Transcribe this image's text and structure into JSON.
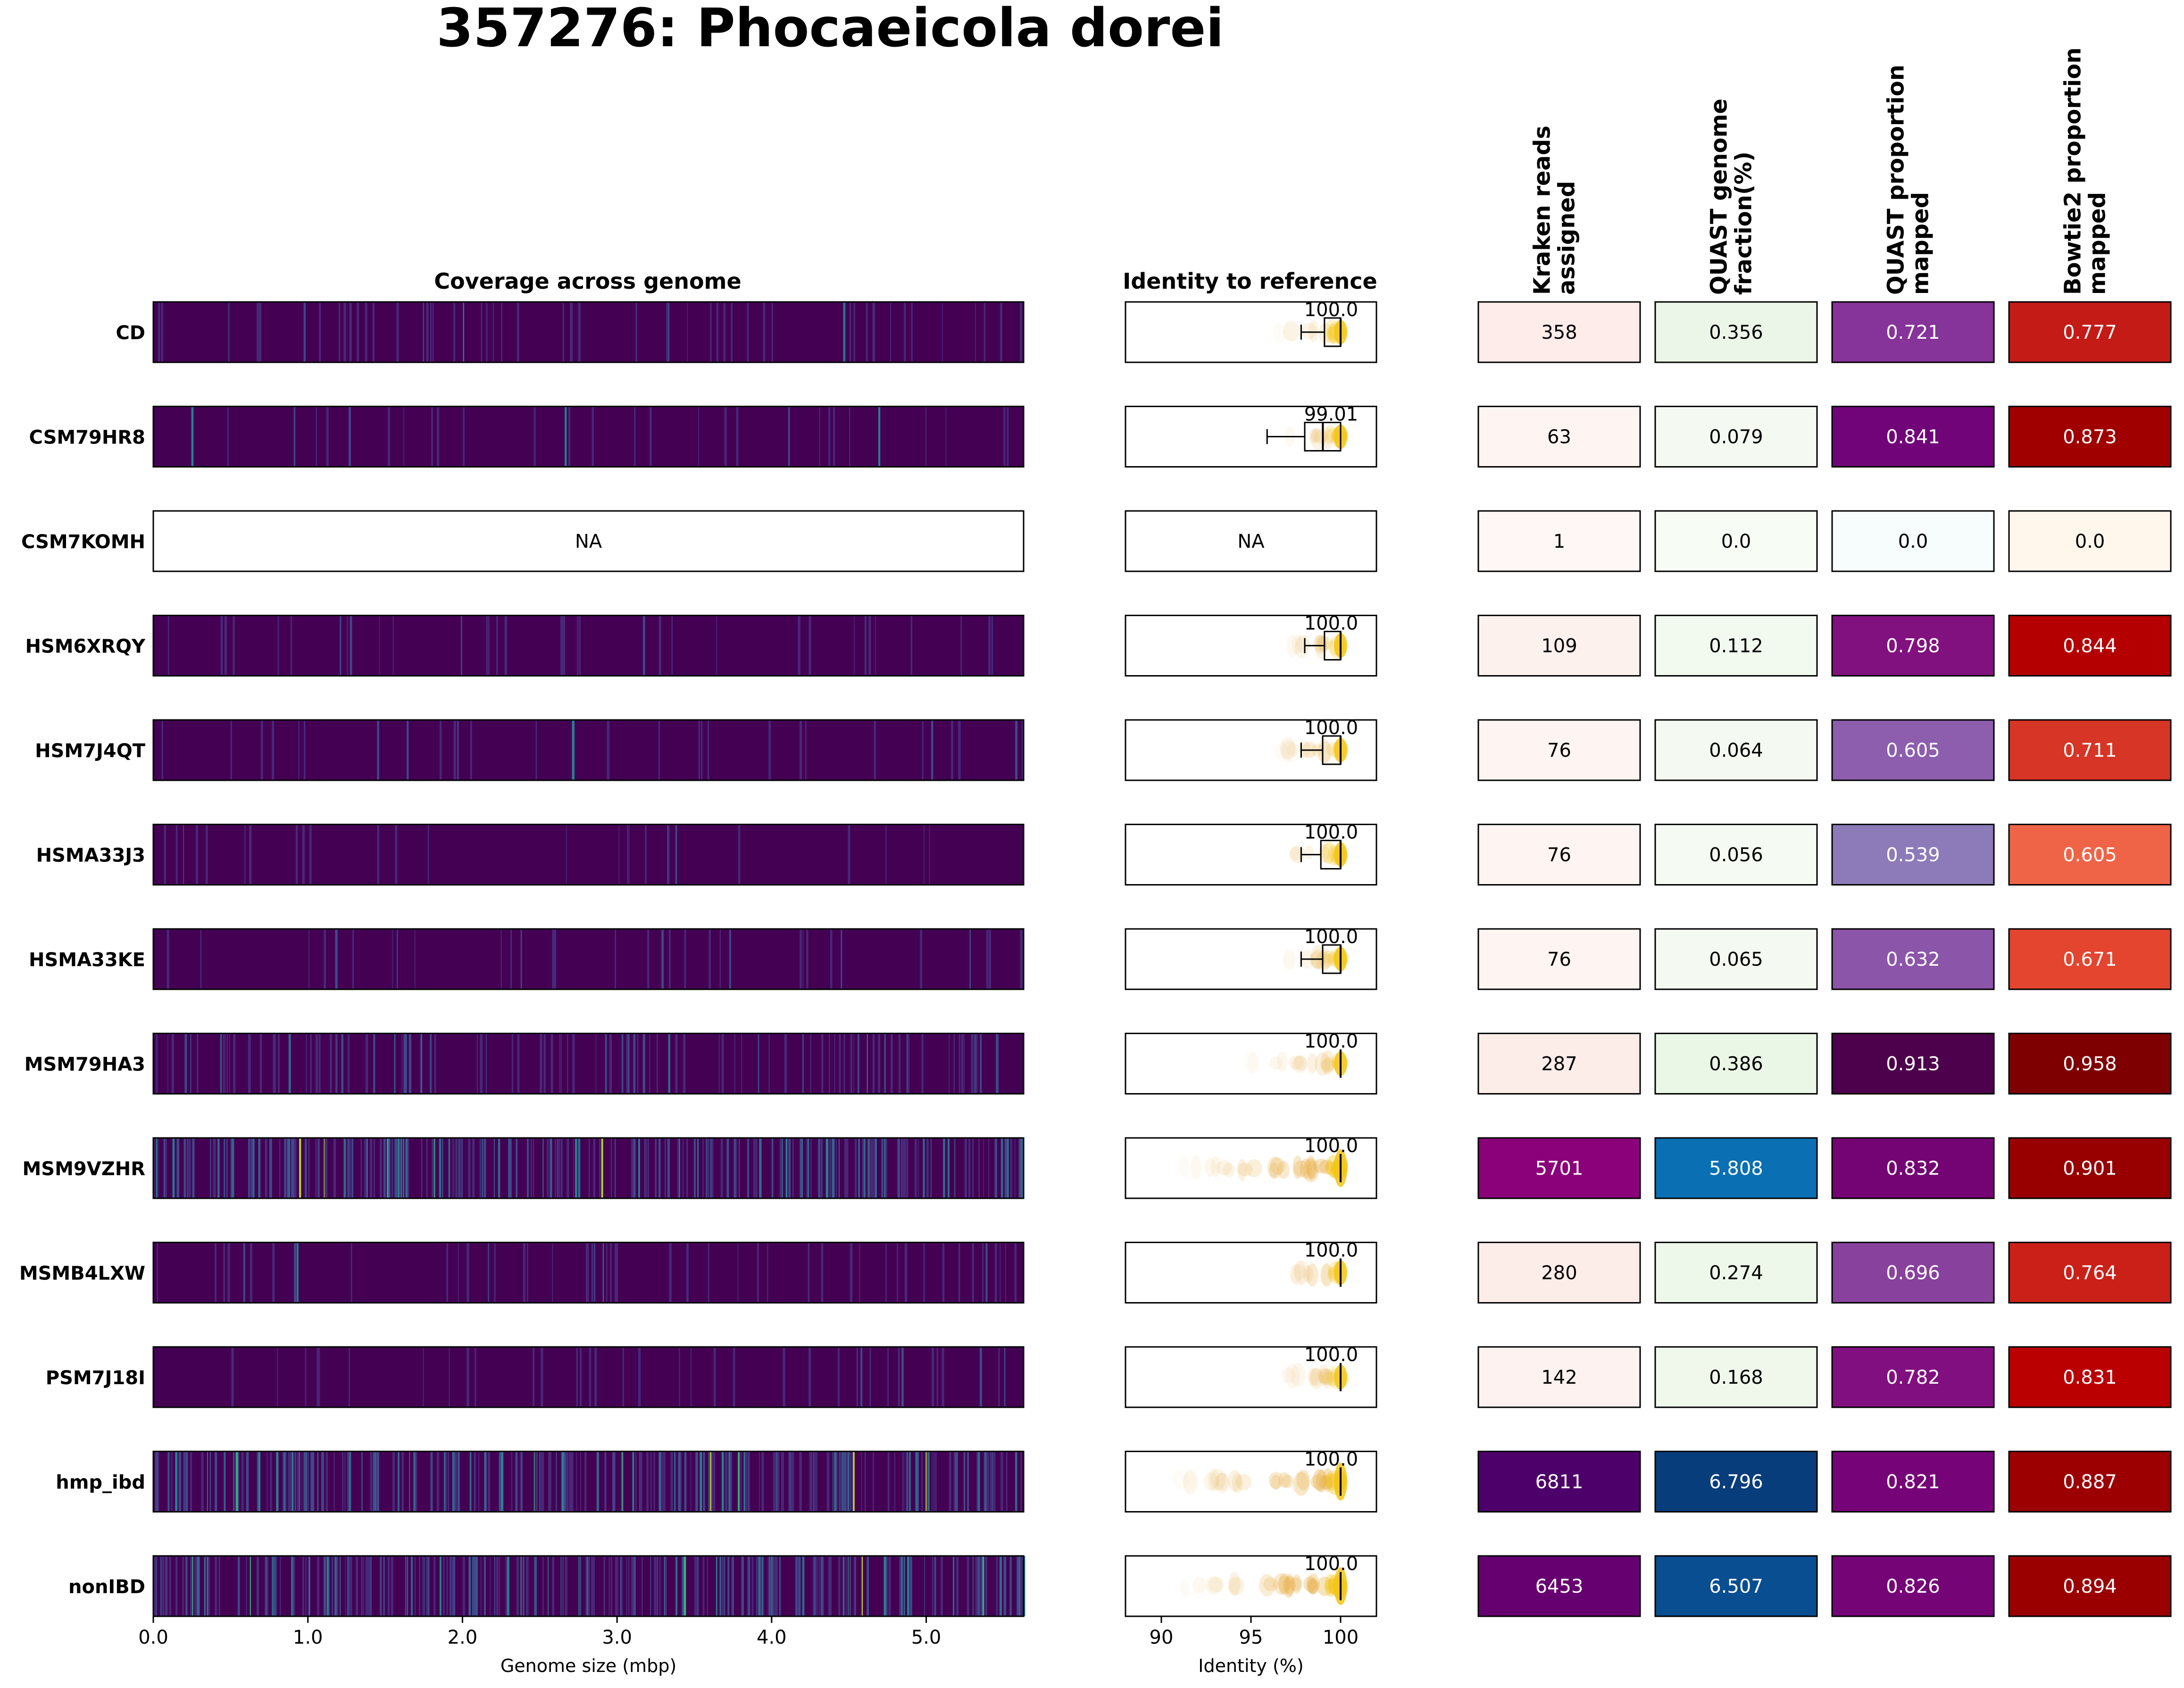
{
  "title": "357276: Phocaeicola dorei",
  "coverage_title": "Coverage across genome",
  "identity_title": "Identity to reference",
  "na_text": "NA",
  "metric_headers": [
    [
      "Kraken reads",
      "assigned"
    ],
    [
      "QUAST genome",
      "fraction(%)"
    ],
    [
      "QUAST proportion",
      "mapped"
    ],
    [
      "Bowtie2 proportion",
      "mapped"
    ]
  ],
  "chart_data": {
    "type": "heatmap",
    "title": "357276: Phocaeicola dorei",
    "samples": [
      "CD",
      "CSM79HR8",
      "CSM7KOMH",
      "HSM6XRQY",
      "HSM7J4QT",
      "HSMA33J3",
      "HSMA33KE",
      "MSM79HA3",
      "MSM9VZHR",
      "MSMB4LXW",
      "PSM7J18I",
      "hmp_ibd",
      "nonIBD"
    ],
    "coverage": {
      "xlabel": "Genome size (mbp)",
      "xlim": [
        0,
        5.63
      ],
      "xticks": [
        "0.0",
        "1.0",
        "2.0",
        "3.0",
        "4.0",
        "5.0"
      ],
      "xtick_values": [
        0,
        1,
        2,
        3,
        4,
        5
      ],
      "colormap": "viridis",
      "density": [
        0.15,
        0.05,
        0,
        0.06,
        0.04,
        0.03,
        0.05,
        0.35,
        0.9,
        0.12,
        0.07,
        0.95,
        0.95
      ]
    },
    "identity": {
      "xlabel": "Identity (%)",
      "xlim": [
        88,
        102
      ],
      "xticks": [
        "90",
        "95",
        "100"
      ],
      "xtick_values": [
        90,
        95,
        100
      ],
      "median_labels": [
        "100.0",
        "99.01",
        "NA",
        "100.0",
        "100.0",
        "100.0",
        "100.0",
        "100.0",
        "100.0",
        "100.0",
        "100.0",
        "100.0",
        "100.0"
      ],
      "boxes": [
        {
          "wmin": 97.8,
          "q1": 99.1,
          "median": 100.0,
          "q3": 100.0,
          "wmax": 100.0
        },
        {
          "wmin": 95.9,
          "q1": 98.0,
          "median": 99.01,
          "q3": 100.0,
          "wmax": 100.0
        },
        null,
        {
          "wmin": 98.0,
          "q1": 99.1,
          "median": 100.0,
          "q3": 100.0,
          "wmax": 100.0
        },
        {
          "wmin": 97.8,
          "q1": 99.0,
          "median": 100.0,
          "q3": 100.0,
          "wmax": 100.0
        },
        {
          "wmin": 97.8,
          "q1": 98.9,
          "median": 100.0,
          "q3": 100.0,
          "wmax": 100.0
        },
        {
          "wmin": 97.8,
          "q1": 99.0,
          "median": 100.0,
          "q3": 100.0,
          "wmax": 100.0
        },
        {
          "wmin": 100.0,
          "q1": 100.0,
          "median": 100.0,
          "q3": 100.0,
          "wmax": 100.0
        },
        {
          "wmin": 100.0,
          "q1": 100.0,
          "median": 100.0,
          "q3": 100.0,
          "wmax": 100.0
        },
        {
          "wmin": 100.0,
          "q1": 100.0,
          "median": 100.0,
          "q3": 100.0,
          "wmax": 100.0
        },
        {
          "wmin": 100.0,
          "q1": 100.0,
          "median": 100.0,
          "q3": 100.0,
          "wmax": 100.0
        },
        {
          "wmin": 100.0,
          "q1": 100.0,
          "median": 100.0,
          "q3": 100.0,
          "wmax": 100.0
        },
        {
          "wmin": 100.0,
          "q1": 100.0,
          "median": 100.0,
          "q3": 100.0,
          "wmax": 100.0
        }
      ]
    },
    "metrics": [
      {
        "name": "Kraken reads assigned",
        "labels": [
          "358",
          "63",
          "1",
          "109",
          "76",
          "76",
          "76",
          "287",
          "5701",
          "280",
          "142",
          "6811",
          "6453"
        ],
        "values": [
          358,
          63,
          1,
          109,
          76,
          76,
          76,
          287,
          5701,
          280,
          142,
          6811,
          6453
        ],
        "colors": [
          "#fdecea",
          "#fef5f2",
          "#fff7f5",
          "#fdf1ee",
          "#fef4f1",
          "#fef4f1",
          "#fef4f1",
          "#fdede9",
          "#8a0179",
          "#fdede9",
          "#fdf2ef",
          "#4d006a",
          "#660070"
        ]
      },
      {
        "name": "QUAST genome fraction(%)",
        "labels": [
          "0.356",
          "0.079",
          "0.0",
          "0.112",
          "0.064",
          "0.056",
          "0.065",
          "0.386",
          "5.808",
          "0.274",
          "0.168",
          "6.796",
          "6.507"
        ],
        "values": [
          0.356,
          0.079,
          0.0,
          0.112,
          0.064,
          0.056,
          0.065,
          0.386,
          5.808,
          0.274,
          0.168,
          6.796,
          6.507
        ],
        "colors": [
          "#ebf6e8",
          "#f4faf1",
          "#f7fcf5",
          "#f2f9ef",
          "#f4faf1",
          "#f5fbf2",
          "#f4faf1",
          "#eaf6e6",
          "#0a6fb3",
          "#eef8ea",
          "#f0f8ec",
          "#083d7b",
          "#084e90"
        ]
      },
      {
        "name": "QUAST proportion mapped",
        "labels": [
          "0.721",
          "0.841",
          "0.0",
          "0.798",
          "0.605",
          "0.539",
          "0.632",
          "0.913",
          "0.832",
          "0.696",
          "0.782",
          "0.821",
          "0.826"
        ],
        "values": [
          0.721,
          0.841,
          0.0,
          0.798,
          0.605,
          0.539,
          0.632,
          0.913,
          0.832,
          0.696,
          0.782,
          0.821,
          0.826
        ],
        "colors": [
          "#86339a",
          "#710479",
          "#f7fcfd",
          "#81117f",
          "#8c5ead",
          "#8c7bb8",
          "#8b55a9",
          "#4d004b",
          "#740474",
          "#88419d",
          "#820f80",
          "#760478",
          "#750477"
        ]
      },
      {
        "name": "Bowtie2 proportion mapped",
        "labels": [
          "0.777",
          "0.873",
          "0.0",
          "0.844",
          "0.711",
          "0.605",
          "0.671",
          "0.958",
          "0.901",
          "0.764",
          "0.831",
          "0.887",
          "0.894"
        ],
        "values": [
          0.777,
          0.873,
          0.0,
          0.844,
          0.711,
          0.605,
          0.671,
          0.958,
          0.901,
          0.764,
          0.831,
          0.887,
          0.894
        ],
        "colors": [
          "#c41b17",
          "#a00000",
          "#fff7ec",
          "#b40000",
          "#d73525",
          "#ef6447",
          "#e3452f",
          "#7f0000",
          "#980000",
          "#ca2017",
          "#ba0000",
          "#9c0000",
          "#9b0000"
        ]
      }
    ]
  }
}
